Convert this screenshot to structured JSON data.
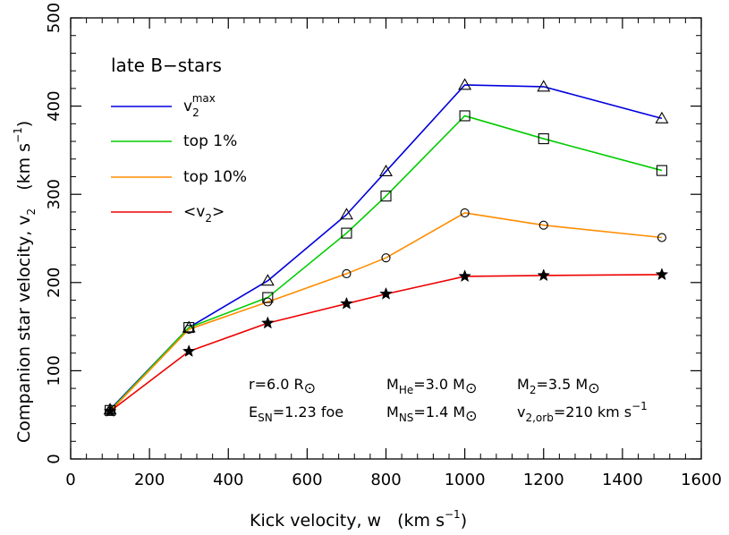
{
  "chart_data": {
    "type": "line",
    "title": "late B−stars",
    "xlabel": {
      "prefix": "Kick velocity, w",
      "unit_open": "(km s",
      "exp": "−1",
      "unit_close": ")"
    },
    "ylabel": {
      "prefix": "Companion star velocity, v",
      "sub": "2",
      "unit_open": "(km s",
      "exp": "−1",
      "unit_close": ")"
    },
    "xlim": [
      0,
      1600
    ],
    "ylim": [
      0,
      500
    ],
    "xticks": [
      0,
      200,
      400,
      600,
      800,
      1000,
      1200,
      1400,
      1600
    ],
    "yticks": [
      0,
      100,
      200,
      300,
      400,
      500
    ],
    "x": [
      100,
      300,
      500,
      700,
      800,
      1000,
      1200,
      1500
    ],
    "grid": false,
    "legend_position": "top-left",
    "series": [
      {
        "id": "vmax",
        "legend": {
          "main": "v",
          "sub": "2",
          "sup": "max"
        },
        "color": "#0000dd",
        "marker": "triangle",
        "values": [
          56,
          149,
          202,
          277,
          326,
          424,
          422,
          386
        ]
      },
      {
        "id": "top1",
        "legend": {
          "main": "top 1%"
        },
        "color": "#00cc00",
        "marker": "square",
        "values": [
          55,
          149,
          183,
          256,
          298,
          389,
          363,
          327
        ]
      },
      {
        "id": "top10",
        "legend": {
          "main": "top 10%"
        },
        "color": "#ff8c00",
        "marker": "circle",
        "values": [
          54,
          147,
          178,
          210,
          228,
          279,
          265,
          251
        ]
      },
      {
        "id": "mean",
        "legend": {
          "pre": "<v",
          "sub": "2",
          "post": ">"
        },
        "color": "#ee0000",
        "marker": "star",
        "values": [
          54,
          122,
          154,
          176,
          187,
          207,
          208,
          209
        ]
      }
    ],
    "annotations": {
      "r": {
        "pre": "r=6.0 R",
        "sym": "⊙"
      },
      "mhe": {
        "pre": "M",
        "sub": "He",
        "post": "=3.0 M",
        "sym": "⊙"
      },
      "m2": {
        "pre": "M",
        "sub": "2",
        "post": "=3.5 M",
        "sym": "⊙"
      },
      "esn": {
        "pre": "E",
        "sub": "SN",
        "post": "=1.23 foe"
      },
      "mns": {
        "pre": "M",
        "sub": "NS",
        "post": "=1.4 M",
        "sym": "⊙"
      },
      "v2orb": {
        "pre": "v",
        "sub": "2,orb",
        "post": "=210 km s",
        "sup": "−1"
      }
    }
  }
}
